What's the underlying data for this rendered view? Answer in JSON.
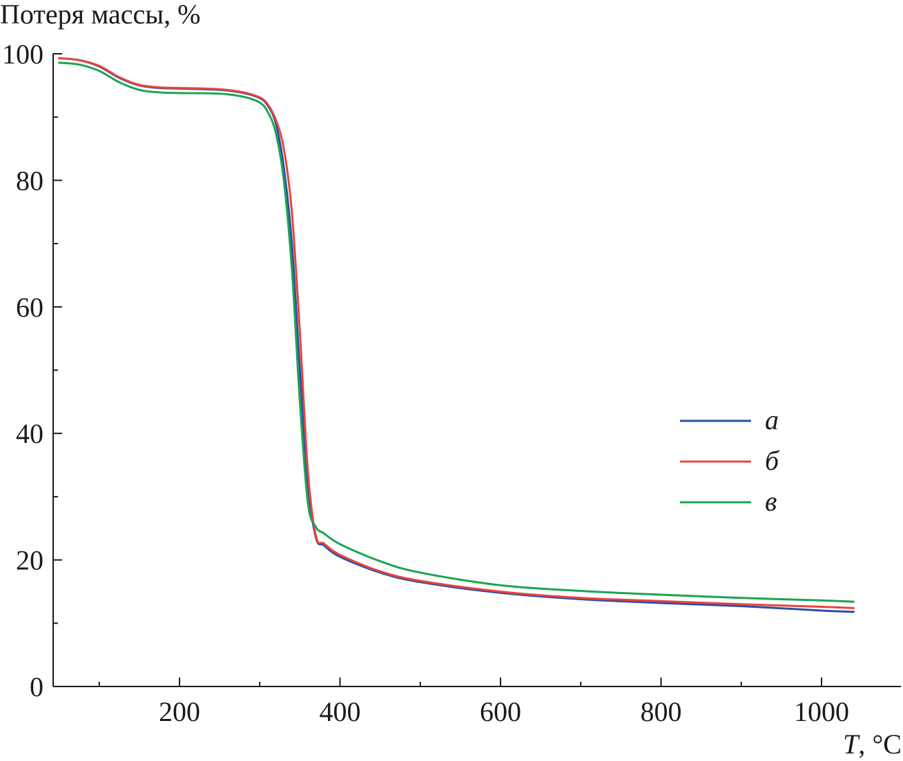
{
  "chart_data": {
    "type": "line",
    "ylabel": "Потеря массы, %",
    "xlabel_italic": "T",
    "xlabel_rest": ", °C",
    "xlim": [
      50,
      1100
    ],
    "ylim": [
      0,
      100
    ],
    "x_major_ticks": [
      200,
      400,
      600,
      800,
      1000
    ],
    "x_major_tick_labels": [
      "200",
      "400",
      "600",
      "800",
      "1000"
    ],
    "x_minor_ticks": [
      100,
      300,
      500,
      700,
      900
    ],
    "y_major_ticks": [
      0,
      20,
      40,
      60,
      80,
      100
    ],
    "y_major_tick_labels": [
      "0",
      "20",
      "40",
      "60",
      "80",
      "100"
    ],
    "y_minor_ticks": [
      10,
      30,
      50,
      70,
      90
    ],
    "grid": false,
    "legend_position": "right",
    "series": [
      {
        "name": "а",
        "color": "#2a4fa8",
        "x": [
          50,
          75,
          100,
          125,
          150,
          175,
          200,
          250,
          280,
          300,
          310,
          320,
          330,
          340,
          350,
          360,
          370,
          380,
          400,
          450,
          500,
          600,
          700,
          800,
          900,
          1000,
          1040
        ],
        "y": [
          99.3,
          99.0,
          98.0,
          96.2,
          95.0,
          94.6,
          94.5,
          94.3,
          93.8,
          93.0,
          91.8,
          89.0,
          82.0,
          70.0,
          50.0,
          32.0,
          23.5,
          22.3,
          20.5,
          18.0,
          16.5,
          14.8,
          13.8,
          13.2,
          12.7,
          12.0,
          11.8
        ]
      },
      {
        "name": "б",
        "color": "#e8453c",
        "x": [
          50,
          75,
          100,
          125,
          150,
          175,
          200,
          250,
          280,
          300,
          310,
          320,
          330,
          340,
          350,
          360,
          370,
          380,
          400,
          450,
          500,
          600,
          700,
          800,
          900,
          1000,
          1040
        ],
        "y": [
          99.3,
          99.0,
          98.1,
          96.3,
          95.1,
          94.7,
          94.6,
          94.4,
          93.9,
          93.1,
          92.0,
          89.6,
          85.0,
          75.0,
          56.0,
          34.0,
          23.8,
          22.6,
          20.8,
          18.2,
          16.7,
          15.0,
          14.0,
          13.5,
          13.0,
          12.6,
          12.4
        ]
      },
      {
        "name": "в",
        "color": "#1aa650",
        "x": [
          50,
          75,
          100,
          125,
          150,
          175,
          200,
          250,
          280,
          300,
          310,
          320,
          330,
          340,
          350,
          360,
          370,
          380,
          400,
          450,
          500,
          600,
          700,
          800,
          900,
          1000,
          1040
        ],
        "y": [
          98.6,
          98.3,
          97.3,
          95.5,
          94.3,
          93.9,
          93.8,
          93.7,
          93.2,
          92.3,
          90.8,
          87.5,
          80.0,
          66.0,
          45.0,
          29.0,
          25.2,
          24.2,
          22.5,
          19.8,
          18.0,
          16.0,
          15.1,
          14.5,
          14.0,
          13.6,
          13.4
        ]
      }
    ]
  }
}
